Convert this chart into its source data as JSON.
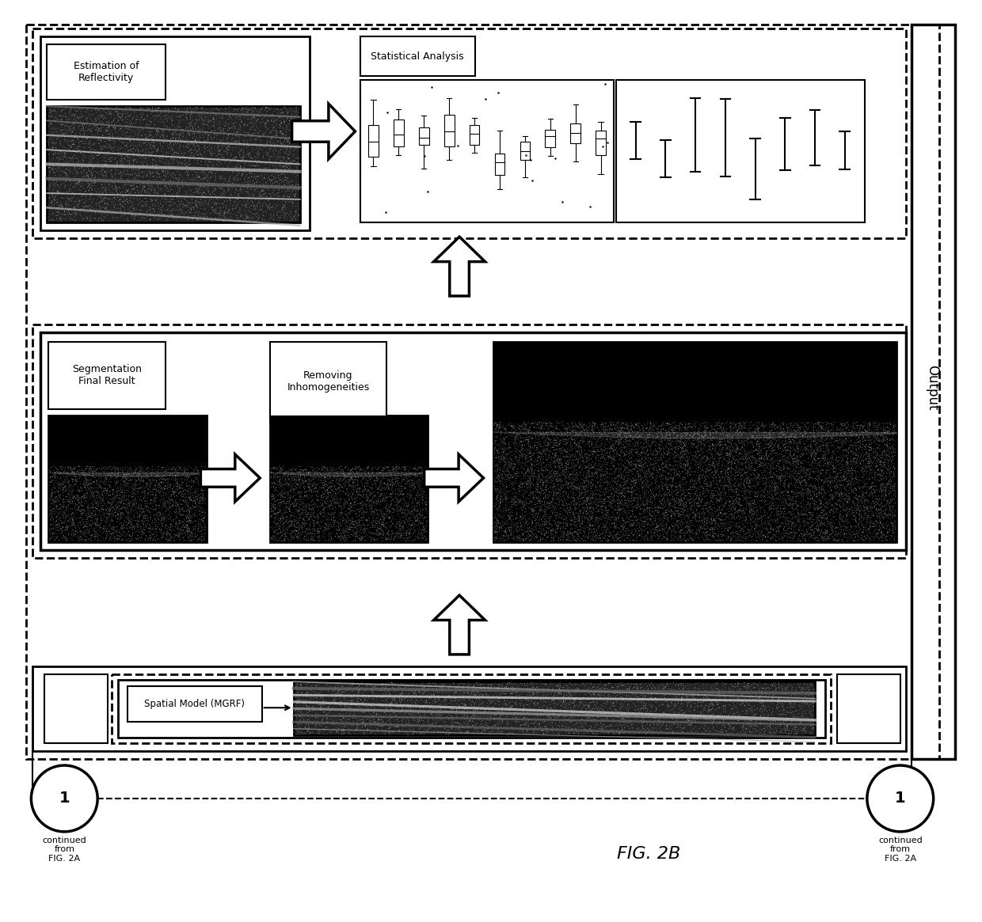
{
  "fig_label": "FIG. 2B",
  "background": "#ffffff",
  "figsize": [
    12.4,
    11.65
  ],
  "dpi": 100,
  "output_label": "Output",
  "fig2b_label": "FIG. 2B",
  "circle_label": "1",
  "circle_note": "continued\nfrom\nFIG. 2A"
}
